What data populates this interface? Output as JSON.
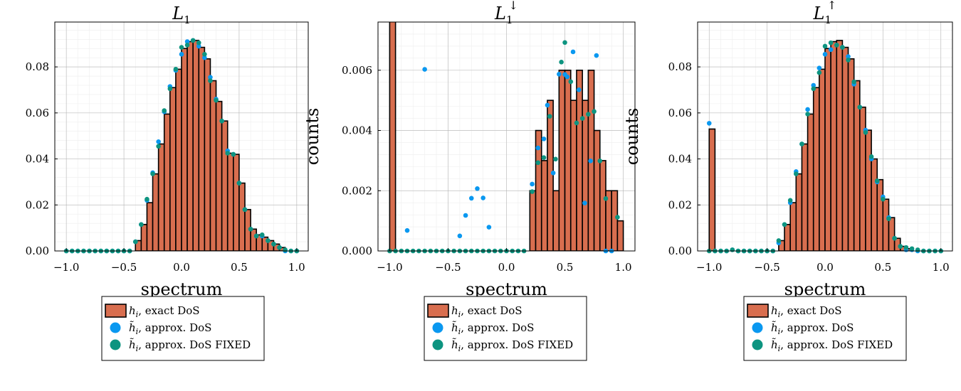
{
  "colors": {
    "exact": "#d86e4f",
    "approx": "#0a98f0",
    "fixed": "#0d9480",
    "grid_major": "#b3b3b3",
    "grid_minor": "#eeeeee",
    "axis": "#000000"
  },
  "legend": {
    "entries": [
      {
        "key": "exact",
        "label": "h_i, exact DoS",
        "label_html": "<tspan font-style='italic'>h</tspan><tspan font-style='italic' font-size='11' dy='4'>i</tspan><tspan dy='-4'>, exact DoS</tspan>"
      },
      {
        "key": "approx",
        "label": "h̃_i, approx. DoS",
        "label_html": "<tspan font-style='italic'>h̃</tspan><tspan font-style='italic' font-size='11' dy='4'>i</tspan><tspan dy='-4'>, approx. DoS</tspan>"
      },
      {
        "key": "fixed",
        "label": "h̃_i, approx. DoS FIXED",
        "label_html": "<tspan font-style='italic'>h̃</tspan><tspan font-style='italic' font-size='11' dy='4'>i</tspan><tspan dy='-4'>, approx. DoS FIXED</tspan>"
      }
    ]
  },
  "chart_data": [
    {
      "type": "bar",
      "title": "L_1",
      "title_base": "L",
      "title_sub": "1",
      "title_sup": "",
      "xlabel": "spectrum",
      "ylabel": "",
      "xlim": [
        -1.1,
        1.1
      ],
      "ylim": [
        0,
        0.0995
      ],
      "xticks": [
        -1.0,
        -0.5,
        0.0,
        0.5,
        1.0
      ],
      "xtick_labels": [
        "−1.0",
        "−0.5",
        "0.0",
        "0.5",
        "1.0"
      ],
      "yticks": [
        0.0,
        0.02,
        0.04,
        0.06,
        0.08
      ],
      "ytick_labels": [
        "0.00",
        "0.02",
        "0.04",
        "0.06",
        "0.08"
      ],
      "grid": true,
      "bins": {
        "start": -0.4,
        "width": 0.05,
        "heights": [
          0.0045,
          0.0115,
          0.021,
          0.0335,
          0.0465,
          0.0595,
          0.071,
          0.079,
          0.088,
          0.091,
          0.0915,
          0.0885,
          0.0835,
          0.074,
          0.065,
          0.0565,
          0.0425,
          0.042,
          0.0295,
          0.018,
          0.0095,
          0.007,
          0.006,
          0.0045,
          0.003,
          0.0015
        ]
      },
      "series": [
        {
          "name": "approx",
          "x": [
            -1.0,
            -0.95,
            -0.9,
            -0.85,
            -0.8,
            -0.75,
            -0.7,
            -0.65,
            -0.6,
            -0.55,
            -0.5,
            -0.45,
            -0.4,
            -0.35,
            -0.3,
            -0.25,
            -0.2,
            -0.15,
            -0.1,
            -0.05,
            0.0,
            0.05,
            0.1,
            0.15,
            0.2,
            0.25,
            0.3,
            0.35,
            0.4,
            0.45,
            0.5,
            0.55,
            0.6,
            0.65,
            0.7,
            0.75,
            0.8,
            0.85,
            0.9,
            0.95,
            1.0
          ],
          "y": [
            0.0,
            0.0,
            0.0,
            0.0,
            0.0,
            0.0,
            0.0,
            0.0,
            0.0,
            0.0,
            0.0,
            0.0,
            0.004,
            0.0115,
            0.022,
            0.034,
            0.0475,
            0.0605,
            0.0715,
            0.0785,
            0.0855,
            0.091,
            0.0915,
            0.089,
            0.084,
            0.0755,
            0.066,
            0.0565,
            0.0435,
            0.042,
            0.0295,
            0.018,
            0.0095,
            0.0065,
            0.0065,
            0.0045,
            0.003,
            0.0015,
            0.0,
            0.0,
            0.0
          ]
        },
        {
          "name": "fixed",
          "x": [
            -1.0,
            -0.95,
            -0.9,
            -0.85,
            -0.8,
            -0.75,
            -0.7,
            -0.65,
            -0.6,
            -0.55,
            -0.5,
            -0.45,
            -0.4,
            -0.35,
            -0.3,
            -0.25,
            -0.2,
            -0.15,
            -0.1,
            -0.05,
            0.0,
            0.05,
            0.1,
            0.15,
            0.2,
            0.25,
            0.3,
            0.35,
            0.4,
            0.45,
            0.5,
            0.55,
            0.6,
            0.65,
            0.7,
            0.75,
            0.8,
            0.85,
            0.9,
            0.95,
            1.0
          ],
          "y": [
            0.0,
            0.0,
            0.0,
            0.0,
            0.0,
            0.0,
            0.0,
            0.0,
            0.0,
            0.0,
            0.0,
            0.0,
            0.004,
            0.0115,
            0.0225,
            0.0335,
            0.0455,
            0.061,
            0.0705,
            0.079,
            0.0885,
            0.0895,
            0.0915,
            0.0905,
            0.0855,
            0.074,
            0.0655,
            0.0565,
            0.0425,
            0.042,
            0.0295,
            0.018,
            0.0095,
            0.0065,
            0.007,
            0.0045,
            0.003,
            0.0015,
            0.0005,
            0.0,
            0.0
          ]
        }
      ]
    },
    {
      "type": "bar",
      "title": "L_1^↓",
      "title_base": "L",
      "title_sub": "1",
      "title_sup": "↓",
      "xlabel": "spectrum",
      "ylabel": "counts",
      "xlim": [
        -1.1,
        1.1
      ],
      "ylim": [
        0,
        0.0076
      ],
      "xticks": [
        -1.0,
        -0.5,
        0.0,
        0.5,
        1.0
      ],
      "xtick_labels": [
        "−1.0",
        "−0.5",
        "0.0",
        "0.5",
        "1.0"
      ],
      "yticks": [
        0.0,
        0.002,
        0.004,
        0.006
      ],
      "ytick_labels": [
        "0.000",
        "0.002",
        "0.004",
        "0.006"
      ],
      "grid": true,
      "bars": [
        {
          "x0": -1.0,
          "x1": -0.95,
          "h": 0.0078
        },
        {
          "x0": 0.2,
          "x1": 0.25,
          "h": 0.002
        },
        {
          "x0": 0.25,
          "x1": 0.3,
          "h": 0.004
        },
        {
          "x0": 0.3,
          "x1": 0.35,
          "h": 0.003
        },
        {
          "x0": 0.35,
          "x1": 0.4,
          "h": 0.005
        },
        {
          "x0": 0.4,
          "x1": 0.45,
          "h": 0.002
        },
        {
          "x0": 0.45,
          "x1": 0.5,
          "h": 0.006
        },
        {
          "x0": 0.5,
          "x1": 0.55,
          "h": 0.006
        },
        {
          "x0": 0.55,
          "x1": 0.6,
          "h": 0.005
        },
        {
          "x0": 0.6,
          "x1": 0.65,
          "h": 0.006
        },
        {
          "x0": 0.65,
          "x1": 0.7,
          "h": 0.005
        },
        {
          "x0": 0.7,
          "x1": 0.75,
          "h": 0.006
        },
        {
          "x0": 0.75,
          "x1": 0.8,
          "h": 0.004
        },
        {
          "x0": 0.8,
          "x1": 0.85,
          "h": 0.003
        },
        {
          "x0": 0.85,
          "x1": 0.9,
          "h": 0.002
        },
        {
          "x0": 0.9,
          "x1": 0.95,
          "h": 0.002
        },
        {
          "x0": 0.95,
          "x1": 1.0,
          "h": 0.001
        }
      ],
      "series": [
        {
          "name": "approx",
          "x": [
            -0.85,
            -0.7,
            -0.4,
            -0.35,
            -0.3,
            -0.25,
            -0.2,
            -0.15,
            0.22,
            0.27,
            0.32,
            0.35,
            0.4,
            0.45,
            0.5,
            0.52,
            0.57,
            0.62,
            0.67,
            0.72,
            0.77,
            0.85,
            0.9
          ],
          "y": [
            0.00068,
            0.00603,
            0.0005,
            0.00118,
            0.00175,
            0.00207,
            0.00176,
            0.00079,
            0.00222,
            0.00342,
            0.00372,
            0.00484,
            0.00259,
            0.00587,
            0.00586,
            0.00578,
            0.00661,
            0.00535,
            0.00159,
            0.00299,
            0.00649,
            0.0,
            0.0
          ]
        },
        {
          "name": "fixed",
          "x": [
            -1.0,
            -0.95,
            -0.9,
            -0.85,
            -0.8,
            -0.75,
            -0.7,
            -0.65,
            -0.6,
            -0.55,
            -0.5,
            -0.45,
            -0.4,
            -0.35,
            -0.3,
            -0.25,
            -0.2,
            -0.15,
            -0.1,
            -0.05,
            0.0,
            0.05,
            0.1,
            0.15,
            0.22,
            0.27,
            0.32,
            0.37,
            0.42,
            0.47,
            0.5,
            0.55,
            0.6,
            0.65,
            0.7,
            0.75,
            0.8,
            0.85,
            0.95
          ],
          "y": [
            0.0,
            0.0,
            0.0,
            0.0,
            0.0,
            0.0,
            0.0,
            0.0,
            0.0,
            0.0,
            0.0,
            0.0,
            0.0,
            0.0,
            0.0,
            0.0,
            0.0,
            0.0,
            0.0,
            0.0,
            0.0,
            0.0,
            0.0,
            0.0,
            0.00197,
            0.00293,
            0.0031,
            0.00447,
            0.00305,
            0.00627,
            0.00692,
            0.00562,
            0.00425,
            0.0044,
            0.00454,
            0.00463,
            0.00299,
            0.00174,
            0.00112
          ]
        }
      ]
    },
    {
      "type": "bar",
      "title": "L_1^↑",
      "title_base": "L",
      "title_sub": "1",
      "title_sup": "↑",
      "xlabel": "spectrum",
      "ylabel": "counts",
      "xlim": [
        -1.1,
        1.1
      ],
      "ylim": [
        0,
        0.0995
      ],
      "xticks": [
        -1.0,
        -0.5,
        0.0,
        0.5,
        1.0
      ],
      "xtick_labels": [
        "−1.0",
        "−0.5",
        "0.0",
        "0.5",
        "1.0"
      ],
      "yticks": [
        0.0,
        0.02,
        0.04,
        0.06,
        0.08
      ],
      "ytick_labels": [
        "0.00",
        "0.02",
        "0.04",
        "0.06",
        "0.08"
      ],
      "grid": true,
      "bars": [
        {
          "x0": -1.0,
          "x1": -0.95,
          "h": 0.053
        }
      ],
      "bins": {
        "start": -0.4,
        "width": 0.05,
        "heights": [
          0.0045,
          0.0115,
          0.021,
          0.0335,
          0.0465,
          0.0595,
          0.071,
          0.079,
          0.088,
          0.091,
          0.0915,
          0.0885,
          0.0835,
          0.074,
          0.0625,
          0.0525,
          0.04,
          0.031,
          0.0225,
          0.0145,
          0.0055,
          0.002,
          0.001
        ]
      },
      "series": [
        {
          "name": "approx",
          "x": [
            -1.0,
            -0.95,
            -0.9,
            -0.85,
            -0.8,
            -0.75,
            -0.7,
            -0.65,
            -0.6,
            -0.55,
            -0.5,
            -0.45,
            -0.4,
            -0.35,
            -0.3,
            -0.25,
            -0.2,
            -0.15,
            -0.1,
            -0.05,
            0.0,
            0.05,
            0.1,
            0.15,
            0.2,
            0.25,
            0.3,
            0.35,
            0.4,
            0.45,
            0.5,
            0.55,
            0.6,
            0.65,
            0.7,
            0.75,
            0.8,
            0.85,
            0.9,
            0.95,
            1.0
          ],
          "y": [
            0.0555,
            0.0,
            0.0,
            0.0,
            0.0005,
            0.0,
            0.0,
            0.0,
            0.0,
            0.0,
            0.0,
            0.0,
            0.0035,
            0.0115,
            0.021,
            0.0345,
            0.0465,
            0.0615,
            0.072,
            0.0795,
            0.0855,
            0.0875,
            0.0895,
            0.0885,
            0.0845,
            0.0725,
            0.0625,
            0.0525,
            0.04,
            0.03,
            0.0235,
            0.0145,
            0.0055,
            0.002,
            0.0005,
            0.0005,
            0.0,
            0.0,
            0.0,
            0.0,
            0.0
          ]
        },
        {
          "name": "fixed",
          "x": [
            -1.0,
            -0.95,
            -0.9,
            -0.85,
            -0.8,
            -0.75,
            -0.7,
            -0.65,
            -0.6,
            -0.55,
            -0.5,
            -0.45,
            -0.4,
            -0.35,
            -0.3,
            -0.25,
            -0.2,
            -0.15,
            -0.1,
            -0.05,
            0.0,
            0.05,
            0.1,
            0.15,
            0.2,
            0.25,
            0.3,
            0.35,
            0.4,
            0.45,
            0.5,
            0.55,
            0.6,
            0.65,
            0.7,
            0.75,
            0.8,
            0.85,
            0.9,
            0.95,
            1.0
          ],
          "y": [
            0.0,
            0.0,
            0.0,
            0.0,
            0.0005,
            0.0,
            0.0,
            0.0,
            0.0,
            0.0,
            0.0,
            0.0,
            0.0045,
            0.0115,
            0.022,
            0.0335,
            0.0465,
            0.0595,
            0.0705,
            0.0775,
            0.089,
            0.0905,
            0.0895,
            0.0885,
            0.083,
            0.0735,
            0.0625,
            0.0515,
            0.041,
            0.0305,
            0.0225,
            0.014,
            0.0055,
            0.002,
            0.0015,
            0.001,
            0.0005,
            0.0,
            0.0,
            0.0,
            0.0
          ]
        }
      ]
    }
  ]
}
